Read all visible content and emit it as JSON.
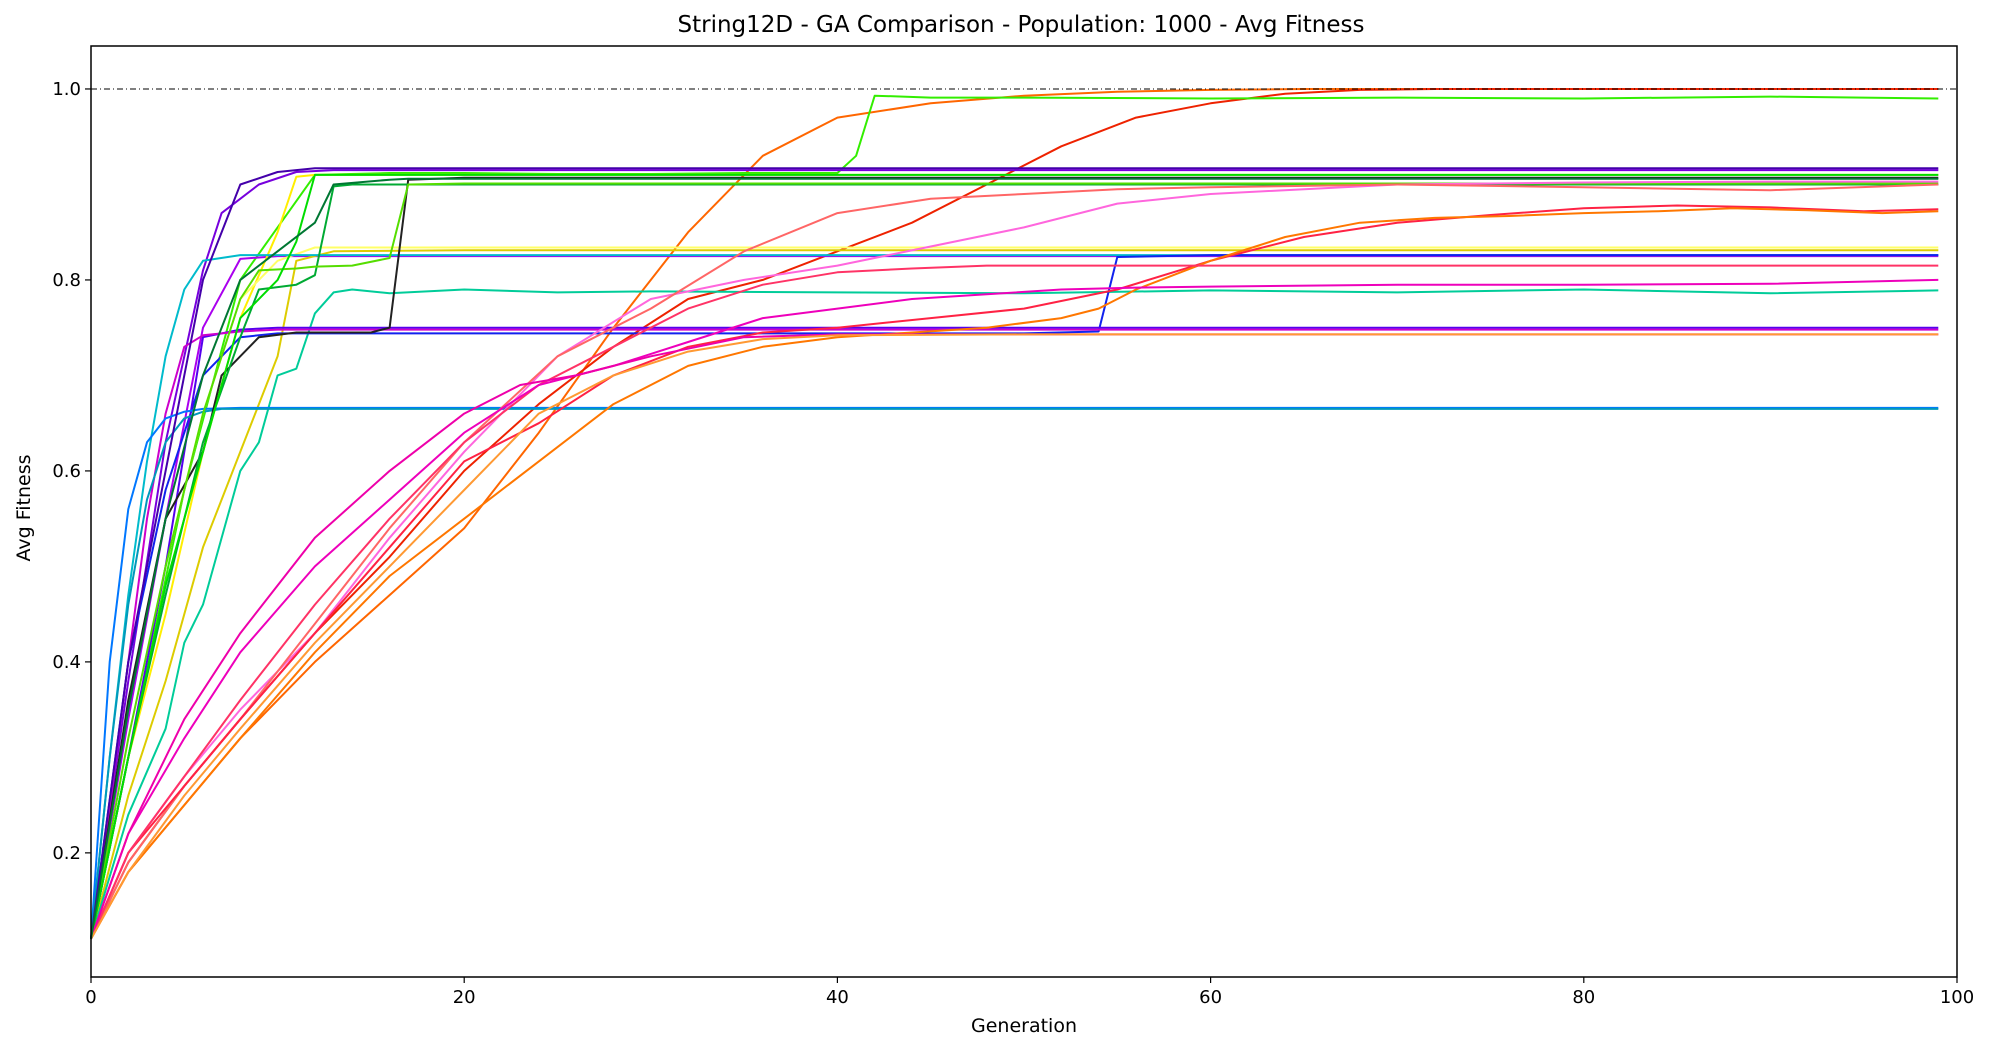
{
  "chart_data": {
    "type": "line",
    "title": "String12D - GA Comparison - Population: 1000 - Avg Fitness",
    "xlabel": "Generation",
    "ylabel": "Avg Fitness",
    "xlim": [
      0,
      100
    ],
    "ylim": [
      0.07,
      1.045
    ],
    "xticks": [
      0,
      20,
      40,
      60,
      80,
      100
    ],
    "yticks": [
      0.2,
      0.4,
      0.6,
      0.8,
      1.0
    ],
    "xtick_labels": [
      "0",
      "20",
      "40",
      "60",
      "80",
      "100"
    ],
    "ytick_labels": [
      "0.2",
      "0.4",
      "0.6",
      "0.8",
      "1.0"
    ],
    "grid": false,
    "legend": "none",
    "reference_line": {
      "y": 1.0,
      "style": "dash-dot",
      "color": "#000000"
    },
    "series": [
      {
        "color": "#ff6600",
        "x": [
          0,
          2,
          5,
          8,
          12,
          16,
          20,
          24,
          28,
          32,
          36,
          40,
          45,
          50,
          55,
          60,
          65,
          70,
          80,
          90,
          99
        ],
        "y": [
          0.11,
          0.18,
          0.25,
          0.32,
          0.4,
          0.47,
          0.54,
          0.64,
          0.75,
          0.85,
          0.93,
          0.97,
          0.985,
          0.993,
          0.997,
          0.999,
          1.0,
          1.0,
          1.0,
          1.0,
          1.0
        ]
      },
      {
        "color": "#ee2200",
        "x": [
          0,
          2,
          5,
          8,
          12,
          16,
          20,
          24,
          28,
          32,
          36,
          40,
          44,
          48,
          52,
          56,
          60,
          64,
          68,
          72,
          80,
          90,
          99
        ],
        "y": [
          0.11,
          0.19,
          0.27,
          0.34,
          0.43,
          0.51,
          0.6,
          0.67,
          0.73,
          0.78,
          0.8,
          0.83,
          0.86,
          0.9,
          0.94,
          0.97,
          0.985,
          0.995,
          0.999,
          1.0,
          1.0,
          1.0,
          1.0
        ]
      },
      {
        "color": "#33ee00",
        "x": [
          0,
          2,
          5,
          8,
          12,
          16,
          20,
          25,
          30,
          35,
          40,
          41,
          42,
          45,
          50,
          60,
          70,
          80,
          90,
          99
        ],
        "y": [
          0.11,
          0.3,
          0.58,
          0.8,
          0.91,
          0.912,
          0.912,
          0.911,
          0.911,
          0.912,
          0.912,
          0.93,
          0.993,
          0.991,
          0.991,
          0.99,
          0.991,
          0.99,
          0.992,
          0.99
        ]
      },
      {
        "color": "#7700dd",
        "x": [
          0,
          2,
          4,
          6,
          7,
          9,
          11,
          13,
          20,
          40,
          60,
          80,
          99
        ],
        "y": [
          0.11,
          0.38,
          0.63,
          0.81,
          0.87,
          0.9,
          0.913,
          0.915,
          0.915,
          0.915,
          0.915,
          0.915,
          0.915
        ]
      },
      {
        "color": "#aa00ee",
        "x": [
          0,
          2,
          4,
          6,
          8,
          10,
          20,
          40,
          60,
          80,
          99
        ],
        "y": [
          0.11,
          0.34,
          0.55,
          0.75,
          0.822,
          0.825,
          0.825,
          0.825,
          0.825,
          0.825,
          0.825
        ]
      },
      {
        "color": "#ffee00",
        "x": [
          0,
          2,
          4,
          6,
          8,
          10,
          11,
          12,
          20,
          40,
          60,
          80,
          99
        ],
        "y": [
          0.11,
          0.3,
          0.45,
          0.62,
          0.76,
          0.85,
          0.908,
          0.91,
          0.91,
          0.91,
          0.91,
          0.91,
          0.91
        ]
      },
      {
        "color": "#ddcc00",
        "x": [
          0,
          2,
          4,
          6,
          8,
          10,
          11,
          13,
          20,
          40,
          60,
          80,
          99
        ],
        "y": [
          0.11,
          0.26,
          0.38,
          0.52,
          0.62,
          0.72,
          0.82,
          0.83,
          0.831,
          0.831,
          0.831,
          0.831,
          0.831
        ]
      },
      {
        "color": "#ffff66",
        "x": [
          0,
          2,
          4,
          6,
          8,
          10,
          12,
          20,
          40,
          60,
          80,
          99
        ],
        "y": [
          0.11,
          0.3,
          0.5,
          0.66,
          0.78,
          0.82,
          0.834,
          0.834,
          0.834,
          0.834,
          0.834,
          0.834
        ]
      },
      {
        "color": "#00bbcc",
        "x": [
          0,
          1,
          2,
          3,
          4,
          5,
          6,
          8,
          12,
          20,
          40,
          60,
          80,
          99
        ],
        "y": [
          0.11,
          0.3,
          0.47,
          0.61,
          0.72,
          0.79,
          0.82,
          0.826,
          0.826,
          0.826,
          0.826,
          0.826,
          0.826,
          0.826
        ]
      },
      {
        "color": "#00cc99",
        "x": [
          0,
          2,
          4,
          5,
          6,
          8,
          9,
          10,
          11,
          12,
          13,
          14,
          16,
          20,
          25,
          30,
          40,
          50,
          60,
          70,
          80,
          90,
          99
        ],
        "y": [
          0.11,
          0.24,
          0.33,
          0.42,
          0.46,
          0.6,
          0.63,
          0.7,
          0.707,
          0.765,
          0.787,
          0.79,
          0.786,
          0.79,
          0.787,
          0.788,
          0.787,
          0.786,
          0.789,
          0.787,
          0.79,
          0.786,
          0.789
        ]
      },
      {
        "color": "#1122ee",
        "x": [
          0,
          2,
          4,
          6,
          8,
          10,
          12,
          20,
          30,
          40,
          50,
          54,
          55,
          60,
          70,
          80,
          90,
          99
        ],
        "y": [
          0.11,
          0.4,
          0.58,
          0.7,
          0.74,
          0.744,
          0.744,
          0.744,
          0.744,
          0.744,
          0.744,
          0.746,
          0.824,
          0.826,
          0.826,
          0.826,
          0.826,
          0.826
        ]
      },
      {
        "color": "#5500ee",
        "x": [
          0,
          2,
          4,
          6,
          8,
          10,
          20,
          40,
          60,
          80,
          99
        ],
        "y": [
          0.11,
          0.3,
          0.5,
          0.74,
          0.748,
          0.75,
          0.75,
          0.75,
          0.75,
          0.75,
          0.75
        ]
      },
      {
        "color": "#cc00cc",
        "x": [
          0,
          1,
          2,
          3,
          4,
          5,
          6,
          8,
          10,
          20,
          40,
          60,
          80,
          99
        ],
        "y": [
          0.11,
          0.25,
          0.4,
          0.55,
          0.66,
          0.73,
          0.742,
          0.746,
          0.748,
          0.748,
          0.748,
          0.748,
          0.748,
          0.748
        ]
      },
      {
        "color": "#0077ff",
        "x": [
          0,
          1,
          2,
          3,
          4,
          5,
          6,
          8,
          20,
          40,
          60,
          80,
          99
        ],
        "y": [
          0.11,
          0.4,
          0.56,
          0.63,
          0.655,
          0.662,
          0.665,
          0.666,
          0.666,
          0.666,
          0.666,
          0.666,
          0.666
        ]
      },
      {
        "color": "#0099bb",
        "x": [
          0,
          1,
          2,
          3,
          4,
          5,
          6,
          7,
          20,
          40,
          60,
          80,
          99
        ],
        "y": [
          0.11,
          0.3,
          0.46,
          0.57,
          0.63,
          0.655,
          0.662,
          0.665,
          0.665,
          0.665,
          0.665,
          0.665,
          0.665
        ]
      },
      {
        "color": "#222222",
        "x": [
          0,
          2,
          4,
          6,
          7,
          9,
          11,
          13,
          15,
          16,
          17,
          20,
          40,
          60,
          80,
          99
        ],
        "y": [
          0.11,
          0.36,
          0.55,
          0.62,
          0.7,
          0.74,
          0.745,
          0.745,
          0.745,
          0.75,
          0.905,
          0.907,
          0.907,
          0.907,
          0.907,
          0.907
        ]
      },
      {
        "color": "#00aa33",
        "x": [
          0,
          2,
          4,
          6,
          8,
          9,
          11,
          12,
          13,
          14,
          20,
          40,
          60,
          80,
          99
        ],
        "y": [
          0.11,
          0.3,
          0.47,
          0.63,
          0.74,
          0.79,
          0.795,
          0.805,
          0.898,
          0.9,
          0.9,
          0.9,
          0.9,
          0.9,
          0.9
        ]
      },
      {
        "color": "#55dd00",
        "x": [
          0,
          2,
          4,
          6,
          8,
          9,
          11,
          12,
          14,
          16,
          17,
          20,
          40,
          60,
          80,
          99
        ],
        "y": [
          0.11,
          0.32,
          0.5,
          0.66,
          0.78,
          0.81,
          0.812,
          0.814,
          0.815,
          0.823,
          0.9,
          0.901,
          0.901,
          0.901,
          0.901,
          0.901
        ]
      },
      {
        "color": "#00dd00",
        "x": [
          0,
          2,
          4,
          6,
          8,
          10,
          11,
          12,
          20,
          40,
          60,
          80,
          99
        ],
        "y": [
          0.11,
          0.3,
          0.48,
          0.62,
          0.76,
          0.8,
          0.84,
          0.91,
          0.91,
          0.91,
          0.91,
          0.91,
          0.91
        ]
      },
      {
        "color": "#ff66dd",
        "x": [
          0,
          2,
          5,
          8,
          12,
          16,
          20,
          25,
          30,
          35,
          40,
          45,
          50,
          55,
          60,
          70,
          80,
          90,
          99
        ],
        "y": [
          0.11,
          0.2,
          0.28,
          0.35,
          0.43,
          0.53,
          0.62,
          0.72,
          0.78,
          0.8,
          0.815,
          0.835,
          0.855,
          0.88,
          0.89,
          0.9,
          0.902,
          0.903,
          0.903
        ]
      },
      {
        "color": "#ff6666",
        "x": [
          0,
          2,
          5,
          8,
          12,
          16,
          20,
          25,
          30,
          35,
          40,
          45,
          50,
          55,
          60,
          70,
          80,
          90,
          99
        ],
        "y": [
          0.11,
          0.19,
          0.27,
          0.34,
          0.44,
          0.54,
          0.63,
          0.72,
          0.77,
          0.83,
          0.87,
          0.885,
          0.89,
          0.895,
          0.897,
          0.9,
          0.897,
          0.894,
          0.9
        ]
      },
      {
        "color": "#ff2244",
        "x": [
          0,
          2,
          5,
          8,
          12,
          16,
          20,
          24,
          28,
          32,
          36,
          40,
          45,
          50,
          55,
          60,
          65,
          70,
          75,
          80,
          85,
          90,
          95,
          99
        ],
        "y": [
          0.11,
          0.2,
          0.27,
          0.34,
          0.43,
          0.52,
          0.61,
          0.65,
          0.7,
          0.73,
          0.745,
          0.75,
          0.76,
          0.77,
          0.79,
          0.82,
          0.845,
          0.86,
          0.868,
          0.875,
          0.878,
          0.876,
          0.872,
          0.874
        ]
      },
      {
        "color": "#ff7700",
        "x": [
          0,
          2,
          5,
          8,
          12,
          16,
          20,
          24,
          28,
          32,
          36,
          40,
          44,
          48,
          52,
          54,
          56,
          60,
          64,
          68,
          72,
          76,
          80,
          84,
          88,
          92,
          96,
          99
        ],
        "y": [
          0.11,
          0.18,
          0.25,
          0.32,
          0.41,
          0.49,
          0.55,
          0.61,
          0.67,
          0.71,
          0.73,
          0.74,
          0.745,
          0.75,
          0.76,
          0.77,
          0.79,
          0.82,
          0.845,
          0.86,
          0.865,
          0.867,
          0.87,
          0.872,
          0.875,
          0.873,
          0.87,
          0.872
        ]
      },
      {
        "color": "#ff3366",
        "x": [
          0,
          2,
          5,
          8,
          12,
          16,
          20,
          24,
          28,
          32,
          36,
          40,
          44,
          48,
          52,
          56,
          60,
          70,
          80,
          90,
          99
        ],
        "y": [
          0.11,
          0.2,
          0.28,
          0.36,
          0.46,
          0.55,
          0.63,
          0.69,
          0.73,
          0.77,
          0.795,
          0.808,
          0.812,
          0.815,
          0.815,
          0.815,
          0.815,
          0.815,
          0.815,
          0.815,
          0.815
        ]
      },
      {
        "color": "#ee00bb",
        "x": [
          0,
          2,
          5,
          8,
          12,
          16,
          20,
          24,
          28,
          32,
          36,
          40,
          44,
          48,
          52,
          56,
          60,
          70,
          80,
          90,
          99
        ],
        "y": [
          0.11,
          0.22,
          0.32,
          0.41,
          0.5,
          0.57,
          0.64,
          0.69,
          0.71,
          0.735,
          0.76,
          0.77,
          0.78,
          0.785,
          0.79,
          0.792,
          0.793,
          0.795,
          0.795,
          0.796,
          0.8
        ]
      },
      {
        "color": "#ee00aa",
        "x": [
          0,
          2,
          5,
          8,
          12,
          16,
          20,
          23,
          26,
          30,
          35,
          40,
          50,
          60,
          80,
          99
        ],
        "y": [
          0.11,
          0.22,
          0.34,
          0.43,
          0.53,
          0.6,
          0.66,
          0.69,
          0.7,
          0.72,
          0.74,
          0.743,
          0.743,
          0.743,
          0.743,
          0.743
        ]
      },
      {
        "color": "#ff9933",
        "x": [
          0,
          2,
          5,
          8,
          12,
          16,
          20,
          24,
          28,
          32,
          36,
          40,
          50,
          60,
          70,
          80,
          90,
          99
        ],
        "y": [
          0.11,
          0.18,
          0.26,
          0.33,
          0.42,
          0.5,
          0.58,
          0.66,
          0.7,
          0.725,
          0.738,
          0.742,
          0.743,
          0.743,
          0.743,
          0.743,
          0.743,
          0.743
        ]
      },
      {
        "color": "#4400aa",
        "x": [
          0,
          2,
          4,
          6,
          8,
          10,
          12,
          20,
          40,
          60,
          80,
          99
        ],
        "y": [
          0.11,
          0.4,
          0.6,
          0.8,
          0.9,
          0.913,
          0.917,
          0.917,
          0.917,
          0.917,
          0.917,
          0.917
        ]
      },
      {
        "color": "#007733",
        "x": [
          0,
          2,
          4,
          6,
          8,
          10,
          12,
          13,
          16,
          17,
          20,
          40,
          60,
          80,
          99
        ],
        "y": [
          0.11,
          0.35,
          0.55,
          0.7,
          0.8,
          0.83,
          0.86,
          0.9,
          0.905,
          0.906,
          0.906,
          0.906,
          0.906,
          0.906,
          0.906
        ]
      }
    ]
  }
}
